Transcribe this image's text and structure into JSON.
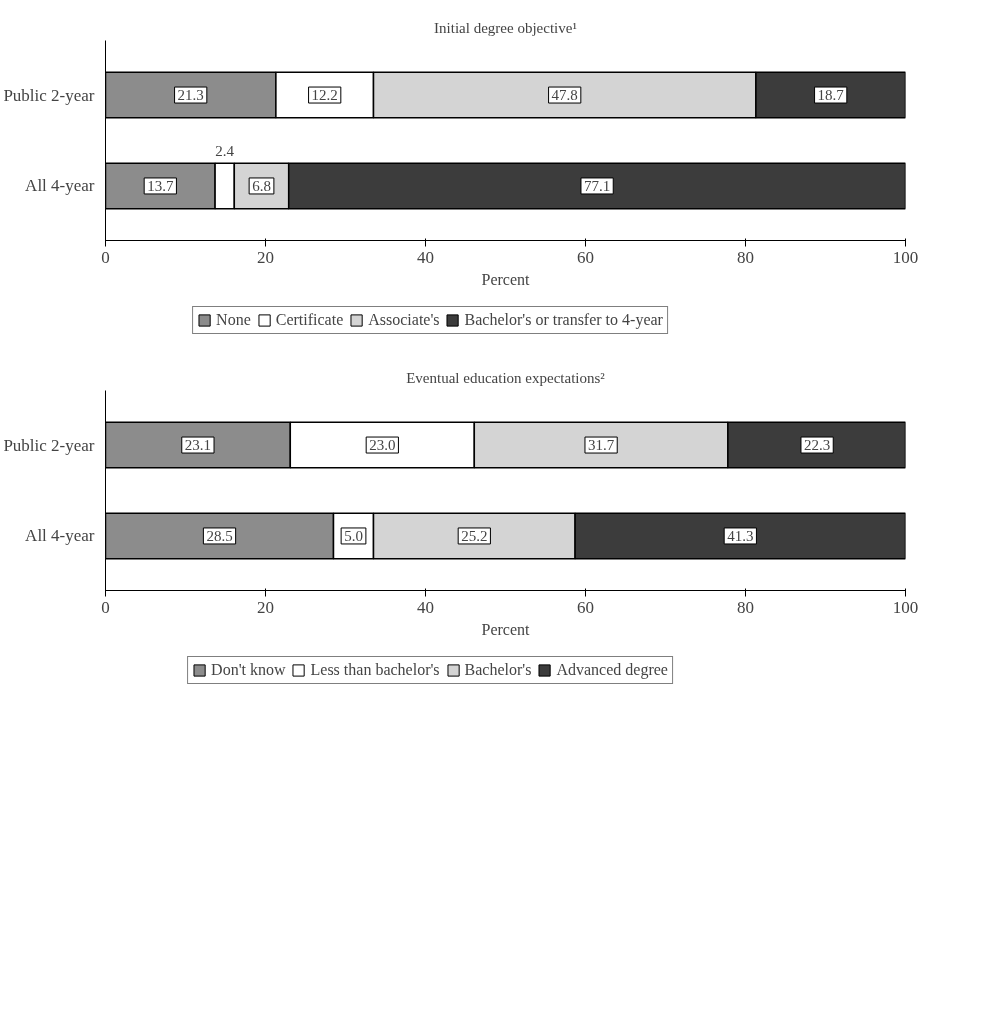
{
  "chart_data": [
    {
      "type": "bar",
      "orientation": "horizontal",
      "stacked": true,
      "title": "Initial degree objective¹",
      "xlabel": "Percent",
      "categories": [
        "Public 2-year",
        "All 4-year"
      ],
      "series": [
        {
          "name": "None",
          "color": "#8c8c8c",
          "values": [
            21.3,
            13.7
          ]
        },
        {
          "name": "Certificate",
          "color": "#ffffff",
          "values": [
            12.2,
            2.4
          ]
        },
        {
          "name": "Associate's",
          "color": "#d4d4d4",
          "values": [
            47.8,
            6.8
          ]
        },
        {
          "name": "Bachelor's or transfer to 4-year",
          "color": "#3c3c3c",
          "values": [
            18.7,
            77.1
          ]
        }
      ],
      "xlim": [
        0,
        100
      ],
      "xticks": [
        0,
        20,
        40,
        60,
        80,
        100
      ],
      "data_labels": true,
      "legend": "bottom"
    },
    {
      "type": "bar",
      "orientation": "horizontal",
      "stacked": true,
      "title": "Eventual education expectations²",
      "xlabel": "Percent",
      "categories": [
        "Public 2-year",
        "All 4-year"
      ],
      "series": [
        {
          "name": "Don't know",
          "color": "#8c8c8c",
          "values": [
            23.1,
            28.5
          ]
        },
        {
          "name": "Less than bachelor's",
          "color": "#ffffff",
          "values": [
            23.0,
            5.0
          ],
          "value_labels": [
            "23.0",
            "5.0"
          ]
        },
        {
          "name": "Bachelor's",
          "color": "#d4d4d4",
          "values": [
            31.7,
            25.2
          ]
        },
        {
          "name": "Advanced degree",
          "color": "#3c3c3c",
          "values": [
            22.3,
            41.3
          ]
        }
      ],
      "xlim": [
        0,
        100
      ],
      "xticks": [
        0,
        20,
        40,
        60,
        80,
        100
      ],
      "data_labels": true,
      "legend": "bottom"
    }
  ]
}
